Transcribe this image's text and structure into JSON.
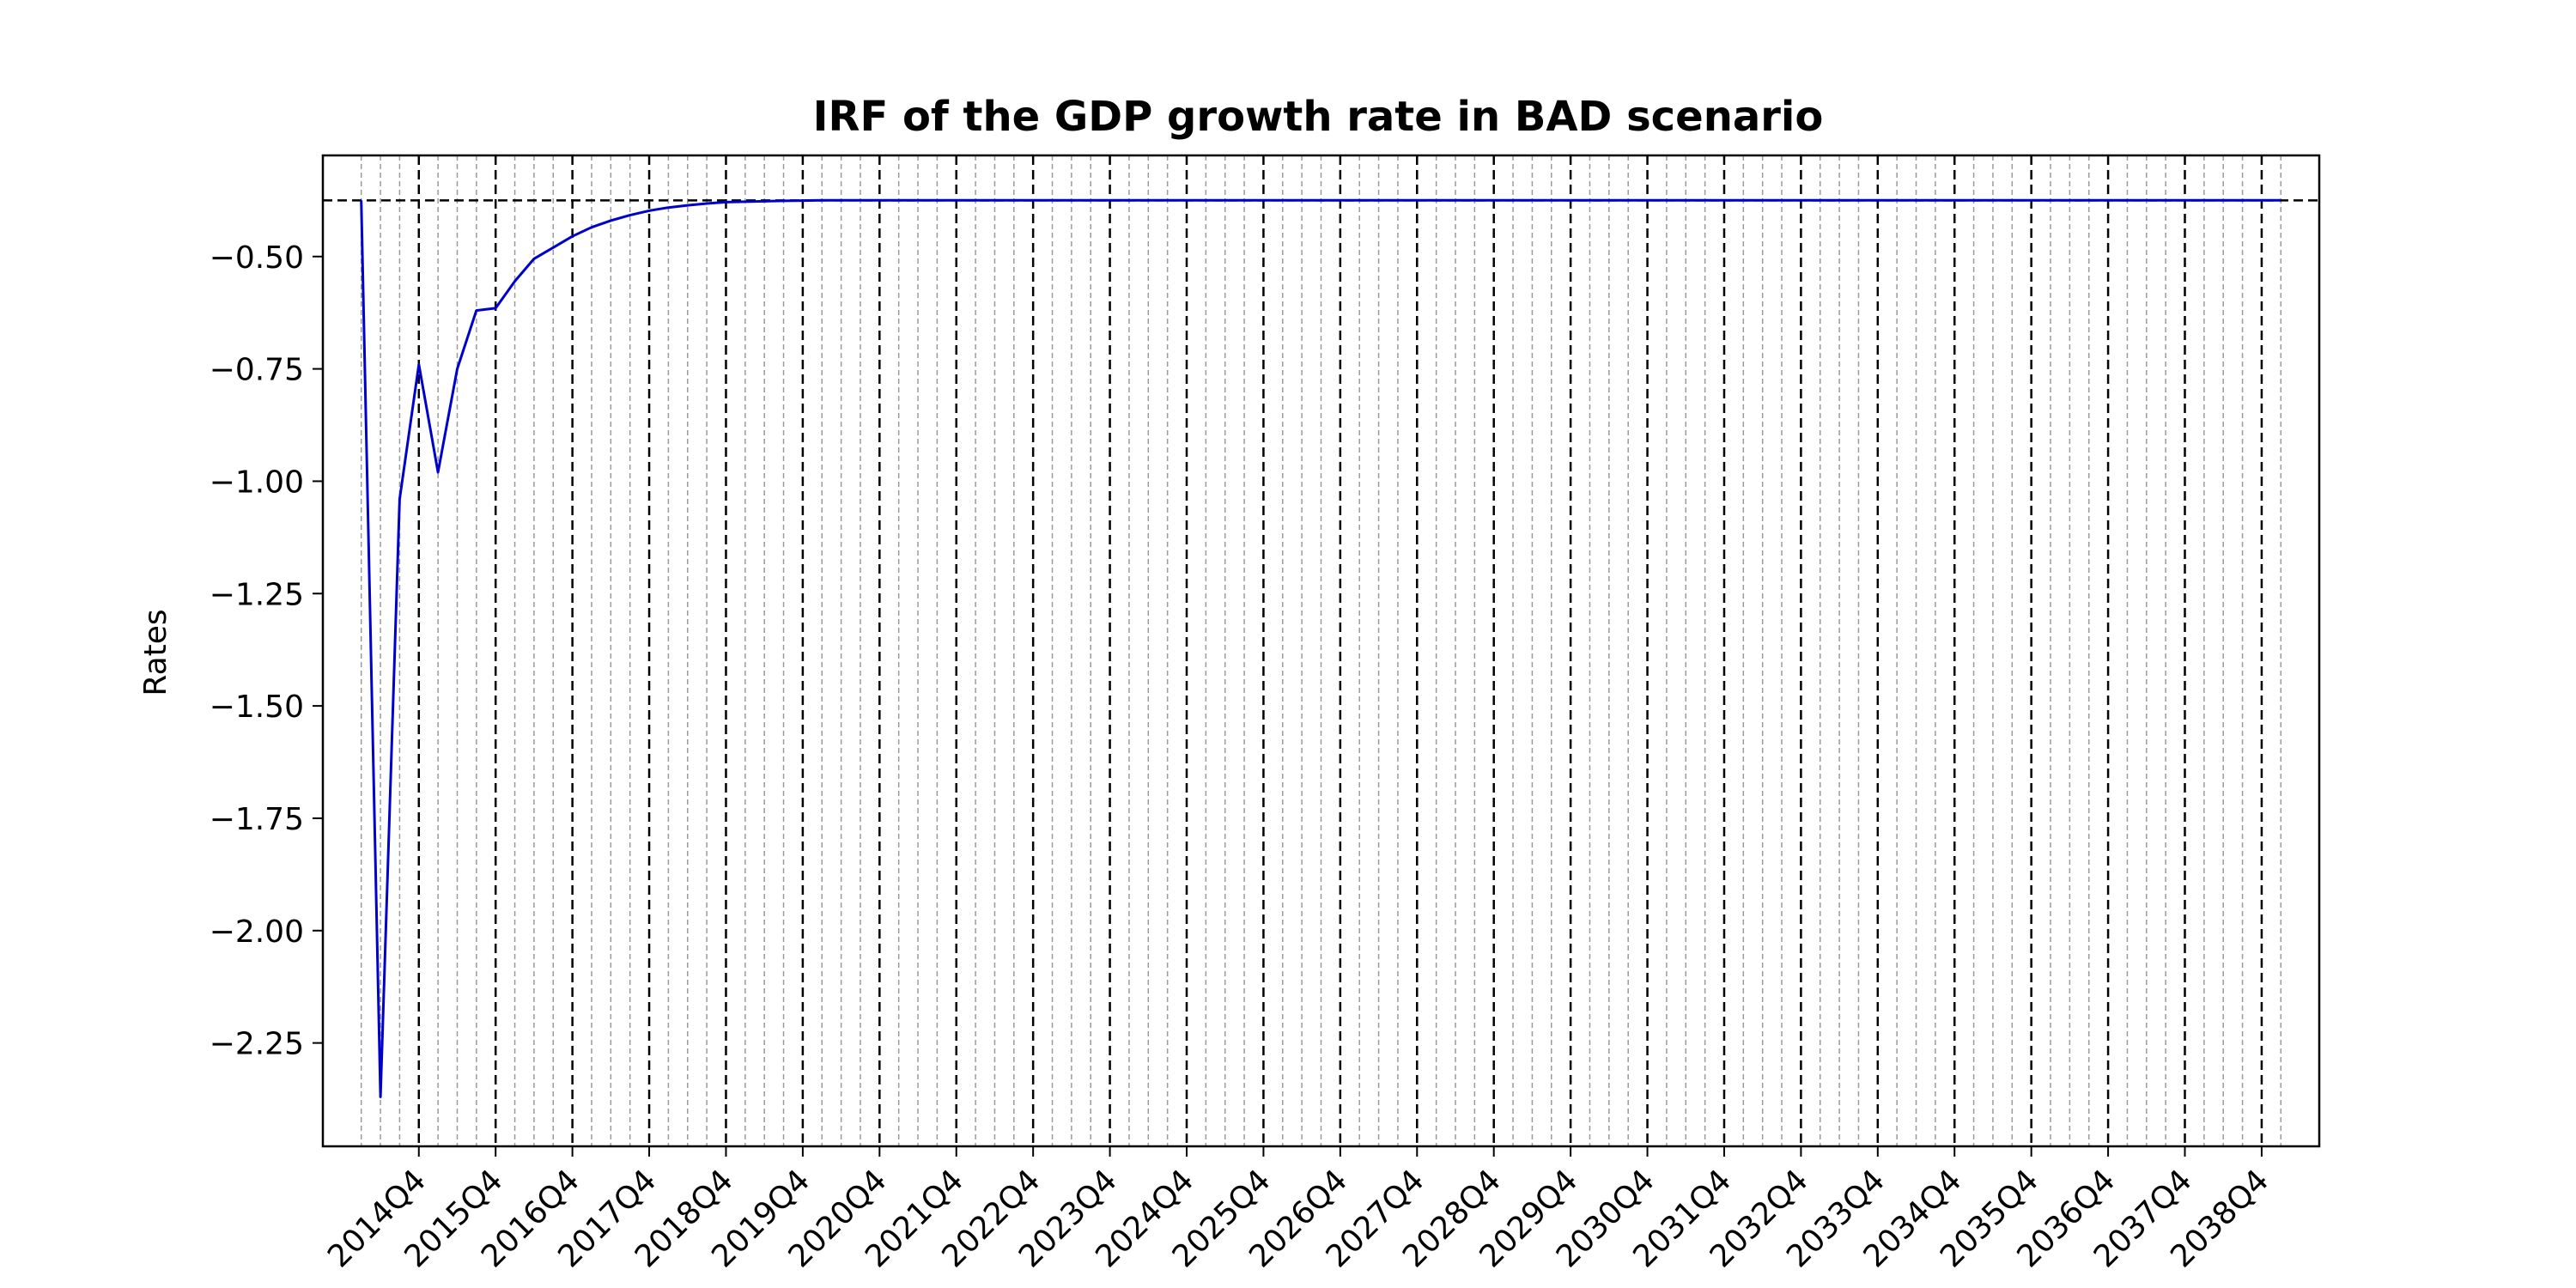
{
  "chart_data": {
    "type": "line",
    "title": "IRF of the GDP growth rate in BAD scenario",
    "xlabel": "",
    "ylabel": "Rates",
    "ylim": [
      -2.48,
      -0.275
    ],
    "yticks": [
      -0.5,
      -0.75,
      -1.0,
      -1.25,
      -1.5,
      -1.75,
      -2.0,
      -2.25
    ],
    "ytick_labels": [
      "−0.50",
      "−0.75",
      "−1.00",
      "−1.25",
      "−1.50",
      "−1.75",
      "−2.00",
      "−2.25"
    ],
    "xlim": [
      "2013Q3",
      "2039Q3"
    ],
    "xticks": [
      "2014Q4",
      "2015Q4",
      "2016Q4",
      "2017Q4",
      "2018Q4",
      "2019Q4",
      "2020Q4",
      "2021Q4",
      "2022Q4",
      "2023Q4",
      "2024Q4",
      "2025Q4",
      "2026Q4",
      "2027Q4",
      "2028Q4",
      "2029Q4",
      "2030Q4",
      "2031Q4",
      "2032Q4",
      "2033Q4",
      "2034Q4",
      "2035Q4",
      "2036Q4",
      "2037Q4",
      "2038Q4"
    ],
    "minor_gridlines": "quarterly",
    "major_gridlines": "annual at Q4",
    "baseline": -0.375,
    "grid": true,
    "legend": "none",
    "series": [
      {
        "color": "#0000cc",
        "x": [
          "2014Q1",
          "2014Q2",
          "2014Q3",
          "2014Q4",
          "2015Q1",
          "2015Q2",
          "2015Q3",
          "2015Q4",
          "2016Q1",
          "2016Q2",
          "2016Q3",
          "2016Q4",
          "2017Q1",
          "2017Q2",
          "2017Q3",
          "2017Q4",
          "2018Q1",
          "2018Q2",
          "2018Q3",
          "2018Q4",
          "2019Q1",
          "2019Q2",
          "2019Q3",
          "2019Q4",
          "2020Q1",
          "2020Q2",
          "2020Q3",
          "2020Q4",
          "2021Q1",
          "2038Q4",
          "2039Q1"
        ],
        "values": [
          -0.375,
          -2.37,
          -1.04,
          -0.74,
          -0.98,
          -0.75,
          -0.62,
          -0.615,
          -0.555,
          -0.505,
          -0.48,
          -0.455,
          -0.435,
          -0.42,
          -0.408,
          -0.398,
          -0.391,
          -0.386,
          -0.382,
          -0.379,
          -0.378,
          -0.377,
          -0.376,
          -0.3755,
          -0.375,
          -0.375,
          -0.375,
          -0.375,
          -0.375,
          -0.375,
          -0.375
        ]
      }
    ]
  }
}
